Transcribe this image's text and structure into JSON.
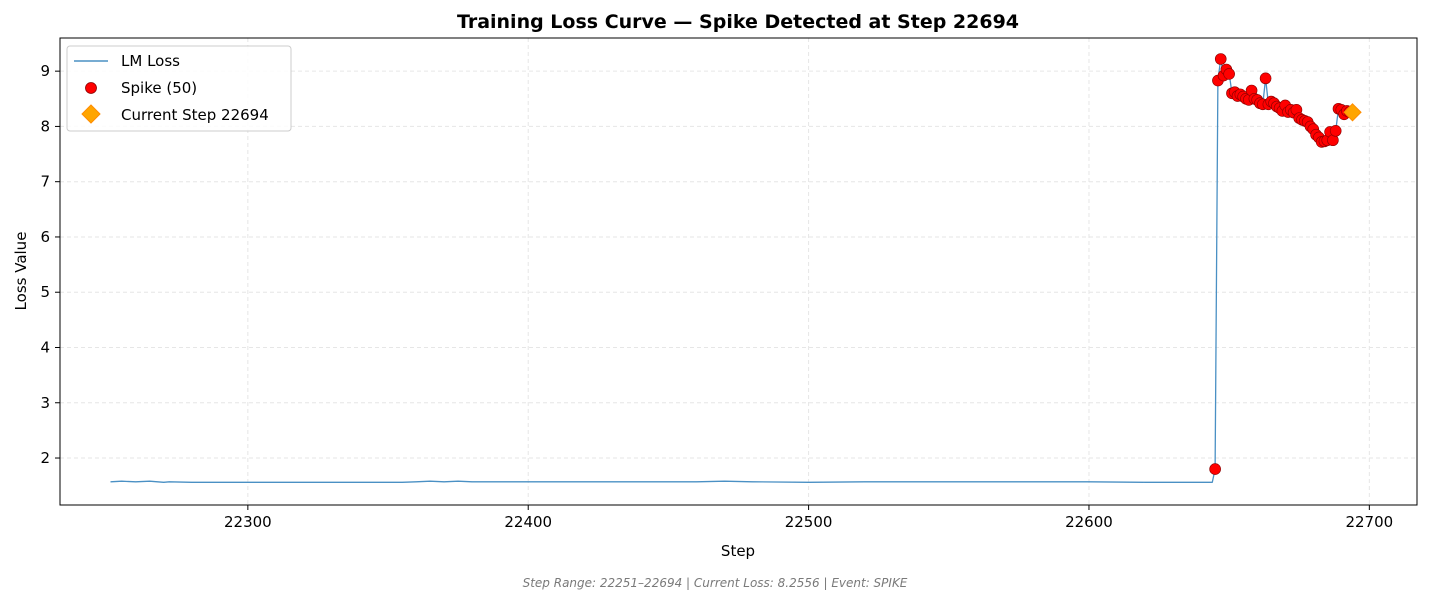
{
  "chart_data": {
    "type": "line",
    "title": "Training Loss Curve — Spike Detected at Step 22694",
    "xlabel": "Step",
    "ylabel": "Loss Value",
    "footer": "Step Range: 22251–22694 | Current Loss: 8.2556 | Event: SPIKE",
    "xlim": [
      22233,
      22717
    ],
    "ylim": [
      1.15,
      9.6
    ],
    "x_ticks": [
      22300,
      22400,
      22500,
      22600,
      22700
    ],
    "y_ticks": [
      2,
      3,
      4,
      5,
      6,
      7,
      8,
      9
    ],
    "grid": true,
    "legend_position": "top-left",
    "legend": {
      "line": "LM Loss",
      "spike": "Spike (50)",
      "current": "Current Step 22694"
    },
    "colors": {
      "line": "#4a90c4",
      "spike_fill": "#ff0000",
      "spike_edge": "#8b0000",
      "current_fill": "#ffa500",
      "current_edge": "#ff8c00",
      "grid": "#e6e6e6"
    },
    "series": [
      {
        "name": "LM Loss",
        "kind": "line",
        "x": [
          22251,
          22255,
          22260,
          22265,
          22270,
          22272,
          22280,
          22290,
          22300,
          22320,
          22340,
          22355,
          22360,
          22365,
          22370,
          22375,
          22380,
          22400,
          22420,
          22440,
          22460,
          22470,
          22480,
          22500,
          22520,
          22540,
          22560,
          22580,
          22600,
          22620,
          22640,
          22644,
          22645,
          22646,
          22647,
          22648,
          22649,
          22650,
          22651,
          22652,
          22653,
          22654,
          22655,
          22656,
          22657,
          22658,
          22659,
          22660,
          22661,
          22662,
          22663,
          22664,
          22665,
          22666,
          22667,
          22668,
          22669,
          22670,
          22671,
          22672,
          22673,
          22674,
          22675,
          22676,
          22677,
          22678,
          22679,
          22680,
          22681,
          22682,
          22683,
          22684,
          22685,
          22686,
          22687,
          22688,
          22689,
          22690,
          22691,
          22692,
          22693,
          22694
        ],
        "y": [
          1.57,
          1.58,
          1.57,
          1.58,
          1.56,
          1.57,
          1.56,
          1.56,
          1.56,
          1.56,
          1.56,
          1.56,
          1.57,
          1.58,
          1.57,
          1.58,
          1.57,
          1.57,
          1.57,
          1.57,
          1.57,
          1.58,
          1.57,
          1.56,
          1.57,
          1.57,
          1.57,
          1.57,
          1.57,
          1.56,
          1.56,
          1.56,
          1.8,
          8.83,
          9.22,
          8.92,
          9.03,
          8.95,
          8.6,
          8.62,
          8.55,
          8.58,
          8.54,
          8.5,
          8.48,
          8.65,
          8.5,
          8.48,
          8.42,
          8.4,
          8.87,
          8.4,
          8.45,
          8.42,
          8.36,
          8.33,
          8.28,
          8.38,
          8.26,
          8.3,
          8.25,
          8.3,
          8.15,
          8.12,
          8.1,
          8.08,
          8.0,
          7.95,
          7.85,
          7.8,
          7.72,
          7.73,
          7.75,
          7.9,
          7.75,
          7.92,
          8.32,
          8.3,
          8.22,
          8.28,
          8.26,
          8.26
        ]
      },
      {
        "name": "Spike (50)",
        "kind": "scatter",
        "x": [
          22645,
          22646,
          22647,
          22648,
          22649,
          22650,
          22651,
          22652,
          22653,
          22654,
          22655,
          22656,
          22657,
          22658,
          22659,
          22660,
          22661,
          22662,
          22663,
          22664,
          22665,
          22666,
          22667,
          22668,
          22669,
          22670,
          22671,
          22672,
          22673,
          22674,
          22675,
          22676,
          22677,
          22678,
          22679,
          22680,
          22681,
          22682,
          22683,
          22684,
          22685,
          22686,
          22687,
          22688,
          22689,
          22690,
          22691,
          22692,
          22693,
          22694
        ],
        "y": [
          1.8,
          8.83,
          9.22,
          8.92,
          9.03,
          8.95,
          8.6,
          8.62,
          8.55,
          8.58,
          8.54,
          8.5,
          8.48,
          8.65,
          8.5,
          8.48,
          8.42,
          8.4,
          8.87,
          8.4,
          8.45,
          8.42,
          8.36,
          8.33,
          8.28,
          8.38,
          8.26,
          8.3,
          8.25,
          8.3,
          8.15,
          8.12,
          8.1,
          8.08,
          8.0,
          7.95,
          7.85,
          7.8,
          7.72,
          7.73,
          7.75,
          7.9,
          7.75,
          7.92,
          8.32,
          8.3,
          8.22,
          8.28,
          8.26,
          8.26
        ]
      },
      {
        "name": "Current Step 22694",
        "kind": "marker",
        "x": [
          22694
        ],
        "y": [
          8.2556
        ]
      }
    ]
  }
}
